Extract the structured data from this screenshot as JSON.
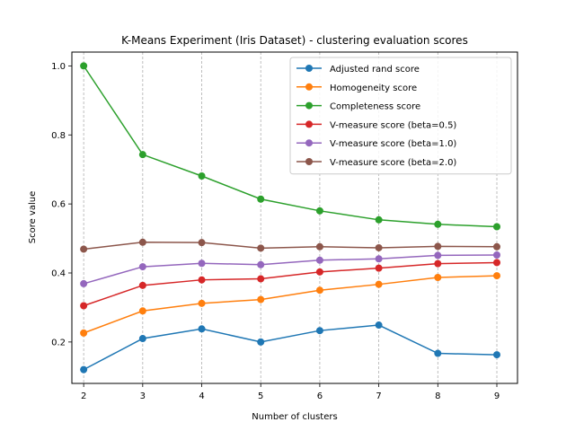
{
  "chart_data": {
    "type": "line",
    "title": "K-Means Experiment (Iris Dataset) - clustering evaluation scores",
    "xlabel": "Number of clusters",
    "ylabel": "Score value",
    "x": [
      2,
      3,
      4,
      5,
      6,
      7,
      8,
      9
    ],
    "xlim": [
      1.8,
      9.35
    ],
    "ylim": [
      0.08,
      1.04
    ],
    "yticks": [
      0.2,
      0.4,
      0.6,
      0.8,
      1.0
    ],
    "ytick_labels": [
      "0.2",
      "0.4",
      "0.6",
      "0.8",
      "1.0"
    ],
    "xtick_labels": [
      "2",
      "3",
      "4",
      "5",
      "6",
      "7",
      "8",
      "9"
    ],
    "vertical_grid": true,
    "legend_position": "top-right",
    "series": [
      {
        "name": "Adjusted rand score",
        "color": "#1f77b4",
        "values": [
          0.12,
          0.21,
          0.238,
          0.2,
          0.233,
          0.249,
          0.167,
          0.163
        ]
      },
      {
        "name": "Homogeneity score",
        "color": "#ff7f0e",
        "values": [
          0.226,
          0.29,
          0.312,
          0.323,
          0.35,
          0.367,
          0.387,
          0.392
        ]
      },
      {
        "name": "Completeness score",
        "color": "#2ca02c",
        "values": [
          1.0,
          0.743,
          0.681,
          0.614,
          0.58,
          0.554,
          0.541,
          0.534
        ]
      },
      {
        "name": "V-measure score (beta=0.5)",
        "color": "#d62728",
        "values": [
          0.305,
          0.364,
          0.38,
          0.383,
          0.403,
          0.414,
          0.427,
          0.43
        ]
      },
      {
        "name": "V-measure score (beta=1.0)",
        "color": "#9467bd",
        "values": [
          0.369,
          0.418,
          0.428,
          0.424,
          0.437,
          0.441,
          0.451,
          0.452
        ]
      },
      {
        "name": "V-measure score (beta=2.0)",
        "color": "#8c564b",
        "values": [
          0.469,
          0.489,
          0.488,
          0.472,
          0.476,
          0.473,
          0.477,
          0.476
        ]
      }
    ]
  }
}
